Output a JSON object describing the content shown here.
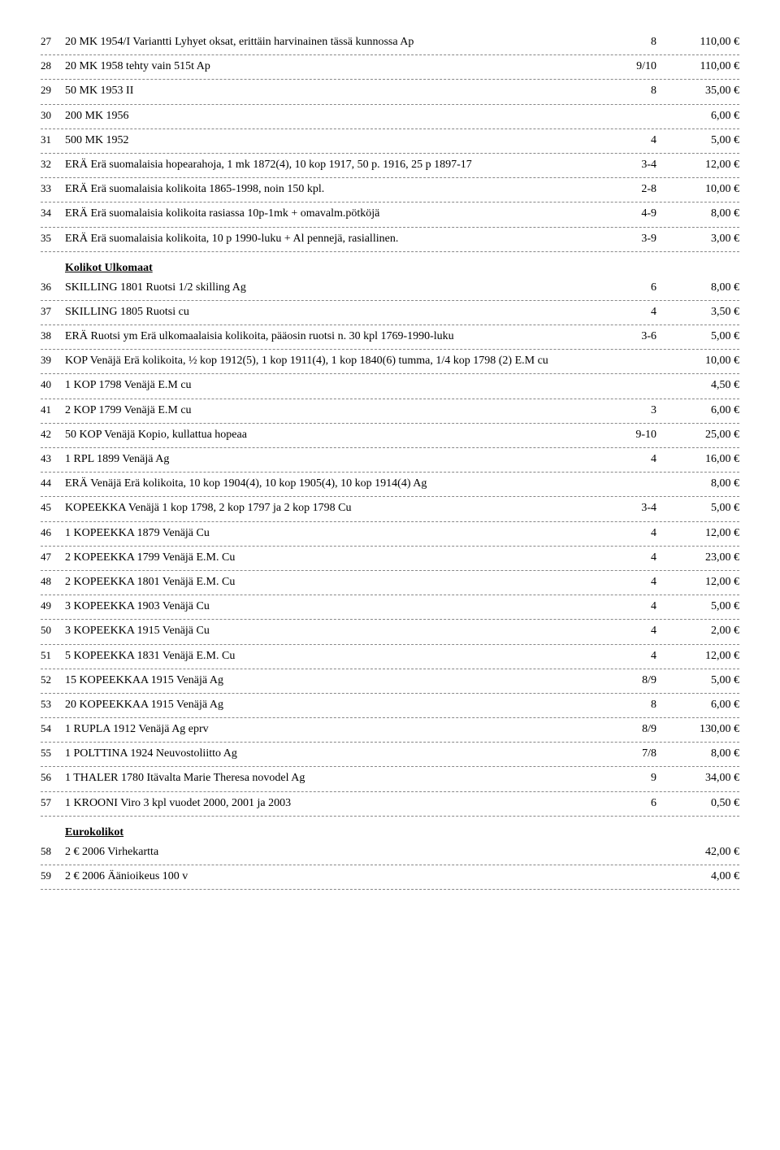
{
  "sections": {
    "kolikot_ulkomaat": "Kolikot Ulkomaat",
    "eurokolikot": "Eurokolikot"
  },
  "rows": [
    {
      "n": "27",
      "desc": "20 MK 1954/I  Variantti Lyhyet oksat, erittäin harvinainen tässä kunnossa Ap",
      "cond": "8",
      "price": "110,00 €"
    },
    {
      "n": "28",
      "desc": "20 MK 1958  tehty vain 515t Ap",
      "cond": "9/10",
      "price": "110,00 €"
    },
    {
      "n": "29",
      "desc": "50 MK 1953  II",
      "cond": "8",
      "price": "35,00 €"
    },
    {
      "n": "30",
      "desc": "200 MK 1956",
      "cond": "",
      "price": "6,00 €"
    },
    {
      "n": "31",
      "desc": "500 MK 1952",
      "cond": "4",
      "price": "5,00 €"
    },
    {
      "n": "32",
      "desc": "ERÄ   Erä suomalaisia hopearahoja, 1 mk 1872(4), 10 kop 1917, 50 p. 1916, 25 p 1897-17",
      "cond": "3-4",
      "price": "12,00 €"
    },
    {
      "n": "33",
      "desc": "ERÄ   Erä suomalaisia kolikoita 1865-1998, noin 150 kpl.",
      "cond": "2-8",
      "price": "10,00 €"
    },
    {
      "n": "34",
      "desc": "ERÄ   Erä suomalaisia kolikoita rasiassa 10p-1mk + omavalm.pötköjä",
      "cond": "4-9",
      "price": "8,00 €"
    },
    {
      "n": "35",
      "desc": "ERÄ   Erä suomalaisia kolikoita, 10 p 1990-luku + Al pennejä, rasiallinen.",
      "cond": "3-9",
      "price": "3,00 €"
    },
    {
      "section": "kolikot_ulkomaat"
    },
    {
      "n": "36",
      "desc": "SKILLING 1801 Ruotsi 1/2 skilling Ag",
      "cond": "6",
      "price": "8,00 €"
    },
    {
      "n": "37",
      "desc": "SKILLING 1805 Ruotsi  cu",
      "cond": "4",
      "price": "3,50 €"
    },
    {
      "n": "38",
      "desc": "ERÄ  Ruotsi ym Erä ulkomaalaisia kolikoita, pääosin ruotsi n. 30 kpl 1769-1990-luku",
      "cond": "3-6",
      "price": "5,00 €"
    },
    {
      "n": "39",
      "desc": "KOP  Venäjä Erä kolikoita, ½ kop 1912(5), 1 kop 1911(4), 1 kop 1840(6) tumma, 1/4 kop 1798 (2) E.M cu",
      "cond": "",
      "price": "10,00 €"
    },
    {
      "n": "40",
      "desc": "1 KOP 1798 Venäjä E.M cu",
      "cond": "",
      "price": "4,50 €"
    },
    {
      "n": "41",
      "desc": "2 KOP 1799 Venäjä E.M cu",
      "cond": "3",
      "price": "6,00 €"
    },
    {
      "n": "42",
      "desc": "50 KOP  Venäjä Kopio, kullattua hopeaa",
      "cond": "9-10",
      "price": "25,00 €"
    },
    {
      "n": "43",
      "desc": "1 RPL 1899 Venäjä  Ag",
      "cond": "4",
      "price": "16,00 €"
    },
    {
      "n": "44",
      "desc": "ERÄ  Venäjä Erä kolikoita, 10 kop 1904(4), 10 kop 1905(4), 10 kop 1914(4) Ag",
      "cond": "",
      "price": "8,00 €"
    },
    {
      "n": "45",
      "desc": "KOPEEKKA  Venäjä 1 kop 1798, 2 kop 1797 ja 2 kop 1798 Cu",
      "cond": "3-4",
      "price": "5,00 €"
    },
    {
      "n": "46",
      "desc": "1 KOPEEKKA 1879 Venäjä  Cu",
      "cond": "4",
      "price": "12,00 €"
    },
    {
      "n": "47",
      "desc": "2 KOPEEKKA 1799 Venäjä E.M.  Cu",
      "cond": "4",
      "price": "23,00 €"
    },
    {
      "n": "48",
      "desc": "2 KOPEEKKA 1801 Venäjä E.M.  Cu",
      "cond": "4",
      "price": "12,00 €"
    },
    {
      "n": "49",
      "desc": "3 KOPEEKKA 1903 Venäjä  Cu",
      "cond": "4",
      "price": "5,00 €"
    },
    {
      "n": "50",
      "desc": "3 KOPEEKKA 1915 Venäjä  Cu",
      "cond": "4",
      "price": "2,00 €"
    },
    {
      "n": "51",
      "desc": "5 KOPEEKKA 1831 Venäjä E.M.  Cu",
      "cond": "4",
      "price": "12,00 €"
    },
    {
      "n": "52",
      "desc": "15 KOPEEKKAA 1915 Venäjä  Ag",
      "cond": "8/9",
      "price": "5,00 €"
    },
    {
      "n": "53",
      "desc": "20 KOPEEKKAA 1915 Venäjä  Ag",
      "cond": "8",
      "price": "6,00 €"
    },
    {
      "n": "54",
      "desc": "1 RUPLA 1912 Venäjä  Ag eprv",
      "cond": "8/9",
      "price": "130,00 €"
    },
    {
      "n": "55",
      "desc": "1 POLTTINA 1924 Neuvostoliitto  Ag",
      "cond": "7/8",
      "price": "8,00 €"
    },
    {
      "n": "56",
      "desc": "1 THALER 1780 Itävalta Marie Theresa novodel Ag",
      "cond": "9",
      "price": "34,00 €"
    },
    {
      "n": "57",
      "desc": "1 KROONI  Viro 3 kpl vuodet 2000, 2001 ja 2003",
      "cond": "6",
      "price": "0,50 €"
    },
    {
      "section": "eurokolikot"
    },
    {
      "n": "58",
      "desc": "2 € 2006  Virhekartta",
      "cond": "",
      "price": "42,00 €"
    },
    {
      "n": "59",
      "desc": "2 € 2006  Äänioikeus 100 v",
      "cond": "",
      "price": "4,00 €"
    }
  ]
}
